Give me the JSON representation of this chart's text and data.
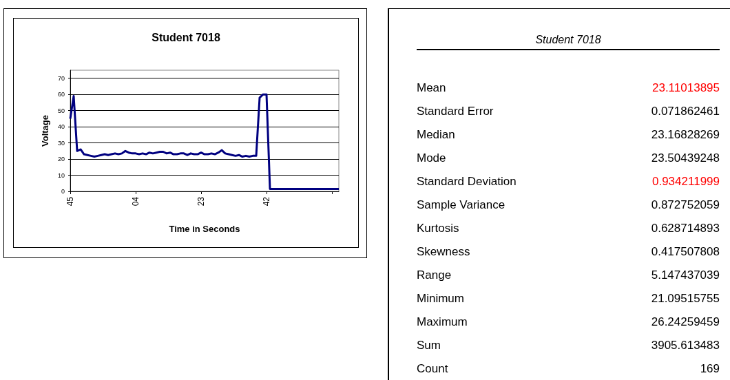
{
  "chart_data": [
    {
      "type": "line",
      "title": "Student 7018",
      "xlabel": "Time in Seconds",
      "ylabel": "Voltage",
      "categories": [
        "45",
        null,
        null,
        null,
        null,
        null,
        null,
        null,
        null,
        null,
        null,
        null,
        null,
        null,
        null,
        null,
        null,
        null,
        null,
        "04",
        null,
        null,
        null,
        null,
        null,
        null,
        null,
        null,
        null,
        null,
        null,
        null,
        null,
        null,
        null,
        null,
        null,
        null,
        "23",
        null,
        null,
        null,
        null,
        null,
        null,
        null,
        null,
        null,
        null,
        null,
        null,
        null,
        null,
        null,
        null,
        null,
        null,
        "42",
        null,
        null,
        null,
        null,
        null,
        null,
        null,
        null,
        null,
        null,
        null,
        null,
        null,
        null,
        null,
        null,
        null,
        null,
        null,
        null,
        null
      ],
      "series": [
        {
          "color": "#000080",
          "values": [
            45,
            59,
            25,
            26,
            23,
            22.5,
            22,
            21.5,
            22,
            22.5,
            23,
            22.5,
            23,
            23.5,
            23,
            23.5,
            25,
            24,
            23.5,
            23.5,
            23,
            23.5,
            23,
            24,
            23.5,
            24,
            24.5,
            24.5,
            23.5,
            24,
            23,
            23,
            23.5,
            23.5,
            22.5,
            23.5,
            23,
            23,
            24,
            23,
            23,
            23.5,
            23,
            24,
            25.5,
            23.5,
            23,
            22.5,
            22,
            22.5,
            21.5,
            22,
            21.5,
            22,
            22,
            58,
            60,
            60,
            1.5,
            1.5,
            1.5,
            1.5,
            1.5,
            1.5,
            1.5,
            1.5,
            1.5,
            1.5,
            1.5,
            1.5,
            1.5,
            1.5,
            1.5,
            1.5,
            1.5,
            1.5,
            1.5,
            1.5,
            1.5
          ]
        }
      ],
      "ylim": [
        0,
        75
      ],
      "yticks": [
        0,
        10,
        20,
        30,
        40,
        50,
        60,
        70
      ],
      "grid": "y",
      "marker": "none",
      "line_style": "solid"
    },
    {
      "type": "other",
      "title": "Student 7018",
      "annotations": [
        "Mean",
        "23.11013895",
        "Standard Error",
        "0.071862461",
        "Median",
        "23.16828269",
        "Mode",
        "23.50439248",
        "Standard Deviation",
        "0.934211999",
        "Sample Variance",
        "0.872752059",
        "Kurtosis",
        "0.628714893",
        "Skewness",
        "0.417507808",
        "Range",
        "5.147437039",
        "Minimum",
        "21.09515755",
        "Maximum",
        "26.24259459",
        "Sum",
        "3905.613483",
        "Count",
        "169"
      ],
      "colors": [
        "#000000",
        "#ff0000",
        "#000000",
        "#000000",
        "#000000",
        "#000000",
        "#000000",
        "#000000",
        "#000000",
        "#ff0000",
        "#000000",
        "#000000",
        "#000000",
        "#000000",
        "#000000",
        "#000000",
        "#000000",
        "#000000",
        "#000000",
        "#000000",
        "#000000",
        "#000000",
        "#000000",
        "#000000",
        "#000000",
        "#000000"
      ]
    }
  ]
}
